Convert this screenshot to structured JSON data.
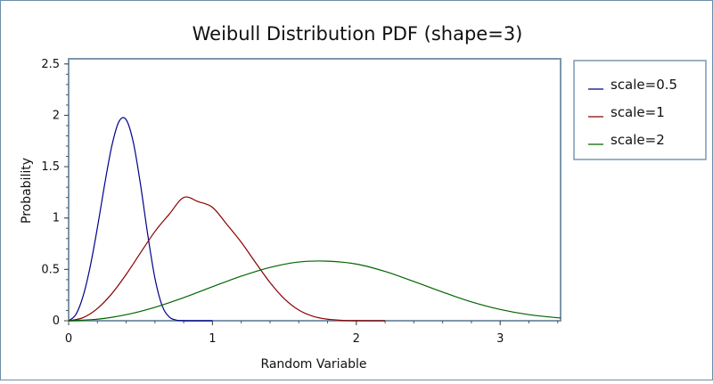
{
  "chart_data": {
    "type": "line",
    "title": "Weibull Distribution PDF (shape=3)",
    "xlabel": "Random Variable",
    "ylabel": "Probability",
    "xlim": [
      0,
      3.42
    ],
    "ylim": [
      0,
      2.55
    ],
    "x_ticks": [
      "0",
      "1",
      "2",
      "3"
    ],
    "y_ticks": [
      "0",
      "0.5",
      "1",
      "1.5",
      "2",
      "2.5"
    ],
    "grid": false,
    "legend_position": "right",
    "shape": 3,
    "series": [
      {
        "name": "scale=0.5",
        "color": "#00008b",
        "x": [
          0,
          0.05,
          0.1,
          0.15,
          0.2,
          0.25,
          0.3,
          0.35,
          0.4,
          0.45,
          0.5,
          0.55,
          0.6,
          0.65,
          0.7,
          0.75,
          0.8,
          0.85,
          0.9,
          0.95,
          1.0
        ],
        "y": [
          0,
          0.06,
          0.237,
          0.527,
          0.906,
          1.324,
          1.7,
          1.939,
          1.957,
          1.735,
          1.324,
          0.838,
          0.414,
          0.147,
          0.036,
          0.006,
          0.001,
          0,
          0,
          0,
          0
        ]
      },
      {
        "name": "scale=1",
        "color": "#8b0000",
        "x": [
          0,
          0.1,
          0.2,
          0.3,
          0.4,
          0.5,
          0.6,
          0.7,
          0.8,
          0.9,
          1.0,
          1.1,
          1.2,
          1.3,
          1.4,
          1.5,
          1.6,
          1.7,
          1.8,
          1.9,
          2.0,
          2.1,
          2.2
        ],
        "y": [
          0,
          0.03,
          0.119,
          0.263,
          0.451,
          0.662,
          0.869,
          1.038,
          1.2,
          1.16,
          1.104,
          0.938,
          0.764,
          0.565,
          0.372,
          0.213,
          0.104,
          0.043,
          0.015,
          0.004,
          0.001,
          0,
          0
        ]
      },
      {
        "name": "scale=2",
        "color": "#006400",
        "x": [
          0,
          0.2,
          0.4,
          0.6,
          0.8,
          1.0,
          1.2,
          1.4,
          1.6,
          1.8,
          2.0,
          2.2,
          2.4,
          2.6,
          2.8,
          3.0,
          3.2,
          3.42
        ],
        "y": [
          0,
          0.015,
          0.059,
          0.131,
          0.225,
          0.331,
          0.434,
          0.519,
          0.572,
          0.58,
          0.552,
          0.48,
          0.382,
          0.279,
          0.184,
          0.11,
          0.059,
          0.026
        ]
      }
    ]
  }
}
